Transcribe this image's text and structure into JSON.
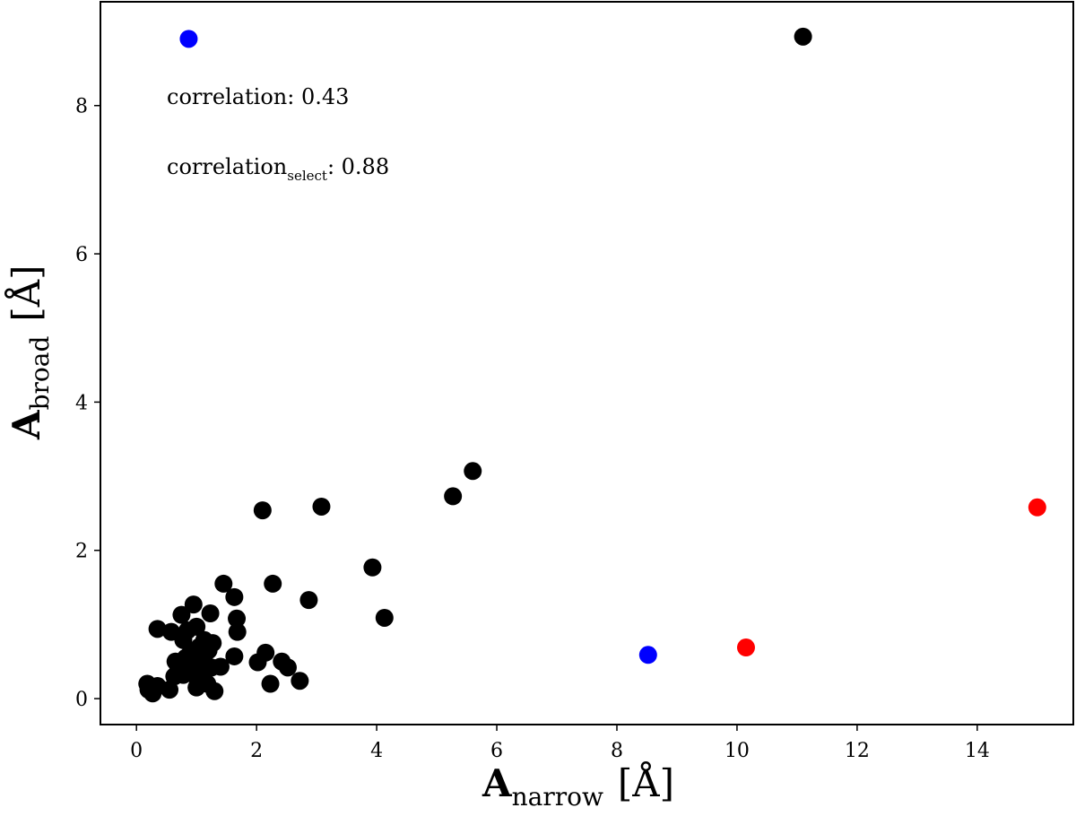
{
  "chart_data": {
    "type": "scatter",
    "title": "",
    "xlabel": {
      "main": "A",
      "sub": "narrow",
      "unit": "[Å]"
    },
    "ylabel": {
      "main": "A",
      "sub": "broad",
      "unit": "[Å]"
    },
    "xlim": [
      -0.6,
      15.6
    ],
    "ylim": [
      -0.35,
      9.4
    ],
    "xticks": [
      0,
      2,
      4,
      6,
      8,
      10,
      12,
      14
    ],
    "yticks": [
      0,
      2,
      4,
      6,
      8
    ],
    "grid": false,
    "annotations": [
      {
        "text": "correlation: 0.43"
      },
      {
        "text_main": "correlation",
        "text_sub": "select",
        "text_rest": ": 0.88"
      }
    ],
    "colors": {
      "default": "#000000",
      "blue": "#0000ff",
      "red": "#ff0000"
    },
    "series": [
      {
        "color": "#000000",
        "points": [
          [
            11.1,
            8.93
          ],
          [
            5.6,
            3.07
          ],
          [
            5.27,
            2.73
          ],
          [
            3.08,
            2.59
          ],
          [
            2.1,
            2.54
          ],
          [
            3.93,
            1.77
          ],
          [
            4.13,
            1.09
          ],
          [
            2.87,
            1.33
          ],
          [
            2.27,
            1.55
          ],
          [
            1.45,
            1.55
          ],
          [
            1.63,
            1.37
          ],
          [
            1.67,
            1.08
          ],
          [
            1.68,
            0.9
          ],
          [
            1.63,
            0.57
          ],
          [
            2.15,
            0.62
          ],
          [
            2.02,
            0.49
          ],
          [
            2.42,
            0.5
          ],
          [
            2.52,
            0.42
          ],
          [
            2.72,
            0.24
          ],
          [
            2.23,
            0.2
          ],
          [
            1.4,
            0.43
          ],
          [
            0.95,
            1.27
          ],
          [
            0.75,
            1.13
          ],
          [
            1.23,
            1.15
          ],
          [
            1.0,
            0.97
          ],
          [
            0.85,
            0.92
          ],
          [
            0.58,
            0.9
          ],
          [
            0.35,
            0.94
          ],
          [
            1.13,
            0.79
          ],
          [
            1.27,
            0.75
          ],
          [
            0.78,
            0.79
          ],
          [
            1.05,
            0.7
          ],
          [
            1.2,
            0.65
          ],
          [
            0.9,
            0.62
          ],
          [
            0.65,
            0.5
          ],
          [
            0.82,
            0.55
          ],
          [
            1.03,
            0.52
          ],
          [
            1.15,
            0.47
          ],
          [
            0.7,
            0.4
          ],
          [
            0.88,
            0.38
          ],
          [
            1.25,
            0.42
          ],
          [
            0.63,
            0.3
          ],
          [
            0.78,
            0.32
          ],
          [
            1.02,
            0.25
          ],
          [
            1.18,
            0.2
          ],
          [
            1.0,
            0.15
          ],
          [
            1.3,
            0.1
          ],
          [
            0.55,
            0.12
          ],
          [
            0.35,
            0.17
          ],
          [
            0.2,
            0.12
          ],
          [
            0.27,
            0.07
          ],
          [
            0.18,
            0.2
          ],
          [
            0.92,
            0.47
          ],
          [
            1.12,
            0.33
          ]
        ]
      },
      {
        "color": "#0000ff",
        "points": [
          [
            0.87,
            8.9
          ],
          [
            8.52,
            0.59
          ]
        ]
      },
      {
        "color": "#ff0000",
        "points": [
          [
            15.0,
            2.58
          ],
          [
            10.15,
            0.69
          ]
        ]
      }
    ]
  }
}
